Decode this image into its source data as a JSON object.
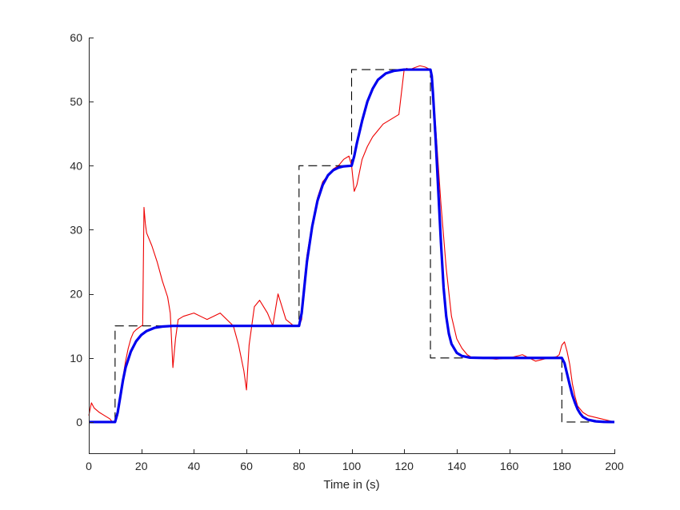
{
  "chart_data": {
    "type": "line",
    "title": "",
    "xlabel": "Time in (s)",
    "ylabel": "",
    "xlim": [
      0,
      200
    ],
    "ylim": [
      -5,
      60
    ],
    "xticks": [
      0,
      20,
      40,
      60,
      80,
      100,
      120,
      140,
      160,
      180,
      200
    ],
    "yticks": [
      0,
      10,
      20,
      30,
      40,
      50,
      60
    ],
    "grid": false,
    "series": [
      {
        "role": "setpoint",
        "color": "#000000",
        "style": "dashed",
        "x": [
          0,
          10,
          10,
          80,
          80,
          100,
          100,
          130,
          130,
          180,
          180,
          200
        ],
        "y": [
          0,
          0,
          15,
          15,
          40,
          40,
          55,
          55,
          10,
          10,
          0,
          0
        ]
      },
      {
        "role": "model-response",
        "color": "#0000ee",
        "style": "solid",
        "x": [
          0,
          10,
          11,
          12,
          13,
          14,
          16,
          18,
          20,
          22,
          25,
          28,
          32,
          40,
          80,
          81,
          82,
          83,
          85,
          87,
          89,
          91,
          93,
          95,
          97,
          100,
          101,
          102,
          104,
          106,
          108,
          110,
          113,
          116,
          120,
          130,
          130.5,
          131,
          132,
          133,
          134,
          135,
          136,
          137,
          138,
          140,
          142,
          145,
          150,
          180,
          181,
          182,
          183,
          184,
          185,
          186,
          187,
          188,
          190,
          193,
          196,
          200
        ],
        "y": [
          0,
          0,
          1.5,
          4,
          6.5,
          8.5,
          11,
          12.6,
          13.6,
          14.2,
          14.7,
          14.9,
          15,
          15,
          15,
          17,
          21,
          25,
          30.5,
          34.5,
          37,
          38.5,
          39.3,
          39.7,
          39.9,
          40,
          41.5,
          43.5,
          47,
          50,
          52,
          53.4,
          54.4,
          54.8,
          55,
          55,
          54,
          51,
          44,
          36,
          28,
          21,
          16.5,
          13.8,
          12.2,
          10.8,
          10.3,
          10.05,
          10,
          10,
          9.2,
          7.5,
          5.8,
          4.2,
          3,
          2,
          1.3,
          0.8,
          0.35,
          0.1,
          0.02,
          0
        ]
      },
      {
        "role": "measured-response",
        "color": "#ee0000",
        "style": "solid",
        "x": [
          0,
          1,
          2,
          4,
          6,
          8,
          9,
          10,
          11,
          12,
          13,
          14,
          15,
          16,
          17,
          18,
          19,
          20,
          20.5,
          21,
          21.5,
          22,
          24,
          26,
          28,
          30,
          31,
          32,
          33,
          34,
          36,
          40,
          45,
          50,
          55,
          57,
          59,
          60,
          61,
          63,
          65,
          68,
          70,
          72,
          75,
          78,
          80,
          81,
          82,
          83,
          85,
          87,
          89,
          91,
          93,
          95,
          97,
          99,
          100,
          101,
          102,
          104,
          106,
          108,
          110,
          112,
          114,
          116,
          118,
          120,
          121,
          122,
          124,
          126,
          128,
          130,
          131,
          132,
          133,
          134,
          136,
          138,
          140,
          142,
          144,
          146,
          150,
          155,
          160,
          165,
          170,
          175,
          178,
          179,
          180,
          181,
          182,
          183,
          184,
          185,
          186,
          188,
          190,
          195,
          200
        ],
        "y": [
          1,
          3,
          2.2,
          1.5,
          1,
          0.5,
          0,
          0,
          1,
          4,
          7,
          9.5,
          11.5,
          13,
          14,
          14.4,
          14.7,
          15,
          15.1,
          33.5,
          31,
          29.5,
          27.5,
          25,
          22,
          19.5,
          17,
          8.5,
          13,
          16,
          16.5,
          17,
          16,
          17,
          15,
          12,
          8,
          5,
          12,
          18,
          19,
          17,
          15,
          20,
          16,
          15,
          15,
          16,
          22,
          26,
          31,
          35,
          37.5,
          38.5,
          39.5,
          40,
          41,
          41.5,
          40,
          36,
          37,
          41,
          43,
          44.5,
          45.5,
          46.5,
          47,
          47.5,
          48,
          55,
          55.2,
          55,
          55.3,
          55.6,
          55.4,
          55,
          52,
          46,
          40,
          34,
          24,
          16.5,
          13,
          11.5,
          10.5,
          10,
          10,
          9.8,
          10,
          10.5,
          9.5,
          10,
          10.2,
          10.5,
          12,
          12.5,
          11,
          9,
          6,
          4,
          2.5,
          1.5,
          1,
          0.5,
          0
        ]
      }
    ]
  }
}
